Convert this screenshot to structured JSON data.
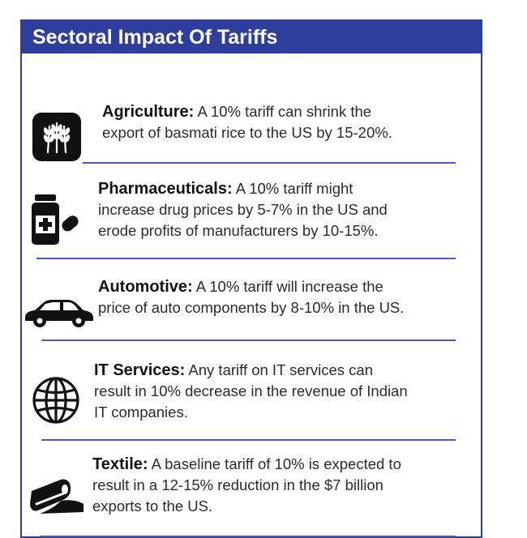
{
  "title": "Sectoral Impact Of Tariffs",
  "items": [
    {
      "icon": "wheat-icon",
      "sector": "Agriculture:",
      "lines": [
        " A 10% tariff can shrink the",
        "export of basmati rice to the US by 15-20%."
      ]
    },
    {
      "icon": "medicine-bottle-icon",
      "sector": "Pharmaceuticals:",
      "lines": [
        " A 10% tariff might",
        "increase drug prices by 5-7% in  the US and",
        "erode profits of manufacturers by 10-15%."
      ]
    },
    {
      "icon": "car-icon",
      "sector": "Automotive:",
      "lines": [
        " A 10% tariff will increase the",
        "price of auto components by 8-10% in the US."
      ]
    },
    {
      "icon": "globe-icon",
      "sector": "IT Services:",
      "lines": [
        " Any tariff on IT services can",
        "result in 10% decrease in the revenue of Indian",
        "IT companies."
      ]
    },
    {
      "icon": "fabric-roll-icon",
      "sector": "Textile:",
      "lines": [
        " A baseline tariff of 10% is expected to",
        "result in a 12-15% reduction in the $7 billion",
        "exports to the US."
      ]
    }
  ],
  "colors": {
    "header_bg": "#2e3f9b",
    "divider": "#4a5bb5",
    "icon": "#111111"
  }
}
